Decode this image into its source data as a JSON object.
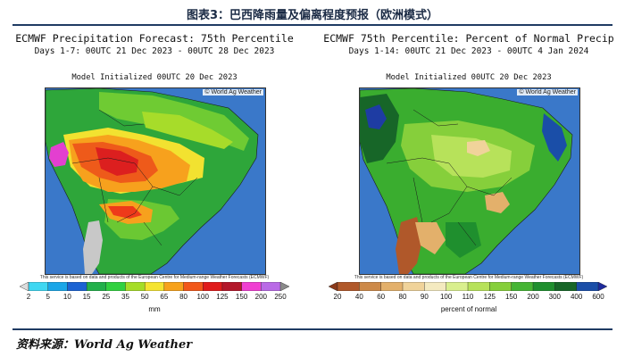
{
  "figure_title": "图表3：巴西降雨量及偏离程度预报（欧洲模式）",
  "source": "资料来源：World Ag Weather",
  "panels": [
    {
      "title": "ECMWF Precipitation Forecast: 75th Percentile",
      "subtitle": "Days 1-7: 00UTC 21 Dec 2023 - 00UTC 28 Dec 2023",
      "initialized": "Model Initialized 00UTC 20 Dec 2023",
      "credit": "© World Ag Weather",
      "disclaimer": "This service is based on data and products of the European Centre for Medium-range Weather Forecasts (ECMWF)",
      "colorbar": {
        "ticks": [
          "2",
          "5",
          "10",
          "15",
          "25",
          "35",
          "50",
          "65",
          "80",
          "100",
          "125",
          "150",
          "200",
          "250"
        ],
        "colors": [
          "#dcdcdc",
          "#3fd7f2",
          "#1aa6e8",
          "#1b63d3",
          "#22b04b",
          "#31d140",
          "#a6dd27",
          "#f5e431",
          "#f7a21c",
          "#f2581a",
          "#e01b1b",
          "#b3172a",
          "#f03fd2",
          "#b96ae6",
          "#8a8a8a"
        ],
        "unit": "mm"
      }
    },
    {
      "title": "ECMWF 75th Percentile: Percent of Normal Precip",
      "subtitle": "Days 1-14: 00UTC 21 Dec 2023 - 00UTC 4 Jan 2024",
      "initialized": "Model Initialized 00UTC 20 Dec 2023",
      "credit": "© World Ag Weather",
      "disclaimer": "This service is based on data and products of the European Centre for Medium-range Weather Forecasts (ECMWF)",
      "colorbar": {
        "ticks": [
          "20",
          "40",
          "60",
          "80",
          "90",
          "100",
          "110",
          "125",
          "150",
          "200",
          "300",
          "400",
          "600"
        ],
        "colors": [
          "#8b3a1a",
          "#b0582a",
          "#cd8a4a",
          "#e3b06b",
          "#f0d39a",
          "#f4eac0",
          "#d9ef8e",
          "#b7e25a",
          "#86cf3b",
          "#46b534",
          "#1f8f2e",
          "#176628",
          "#1a4ea8",
          "#1e2a9c"
        ],
        "unit": "percent of normal"
      }
    }
  ]
}
